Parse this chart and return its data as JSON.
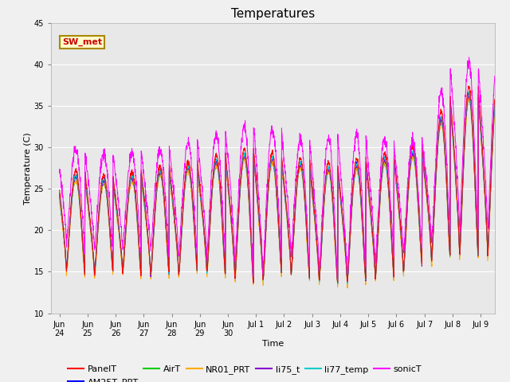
{
  "title": "Temperatures",
  "xlabel": "Time",
  "ylabel": "Temperature (C)",
  "ylim": [
    10,
    45
  ],
  "xlim_start": -0.3,
  "xlim_end": 15.5,
  "xtick_labels": [
    "Jun\n24",
    "Jun\n25",
    "Jun\n26",
    "Jun\n27",
    "Jun\n28",
    "Jun\n29",
    "Jun\n30",
    "Jul 1",
    "Jul 2",
    "Jul 3",
    "Jul 4",
    "Jul 5",
    "Jul 6",
    "Jul 7",
    "Jul 8",
    "Jul 9"
  ],
  "xtick_positions": [
    0,
    1,
    2,
    3,
    4,
    5,
    6,
    7,
    8,
    9,
    10,
    11,
    12,
    13,
    14,
    15
  ],
  "ytick_positions": [
    10,
    15,
    20,
    25,
    30,
    35,
    40,
    45
  ],
  "series_colors": {
    "PanelT": "#ff0000",
    "AM25T_PRT": "#0000ff",
    "AirT": "#00cc00",
    "NR01_PRT": "#ffaa00",
    "li75_t": "#8800cc",
    "li77_temp": "#00cccc",
    "sonicT": "#ff00ff"
  },
  "annotation_text": "SW_met",
  "annotation_bg": "#ffffcc",
  "annotation_border": "#aa8800",
  "annotation_text_color": "#cc0000",
  "fig_bg_color": "#f0f0f0",
  "axes_bg_color": "#e8e8e8",
  "grid_color": "#ffffff",
  "title_fontsize": 11,
  "label_fontsize": 8,
  "tick_fontsize": 7,
  "legend_fontsize": 8
}
